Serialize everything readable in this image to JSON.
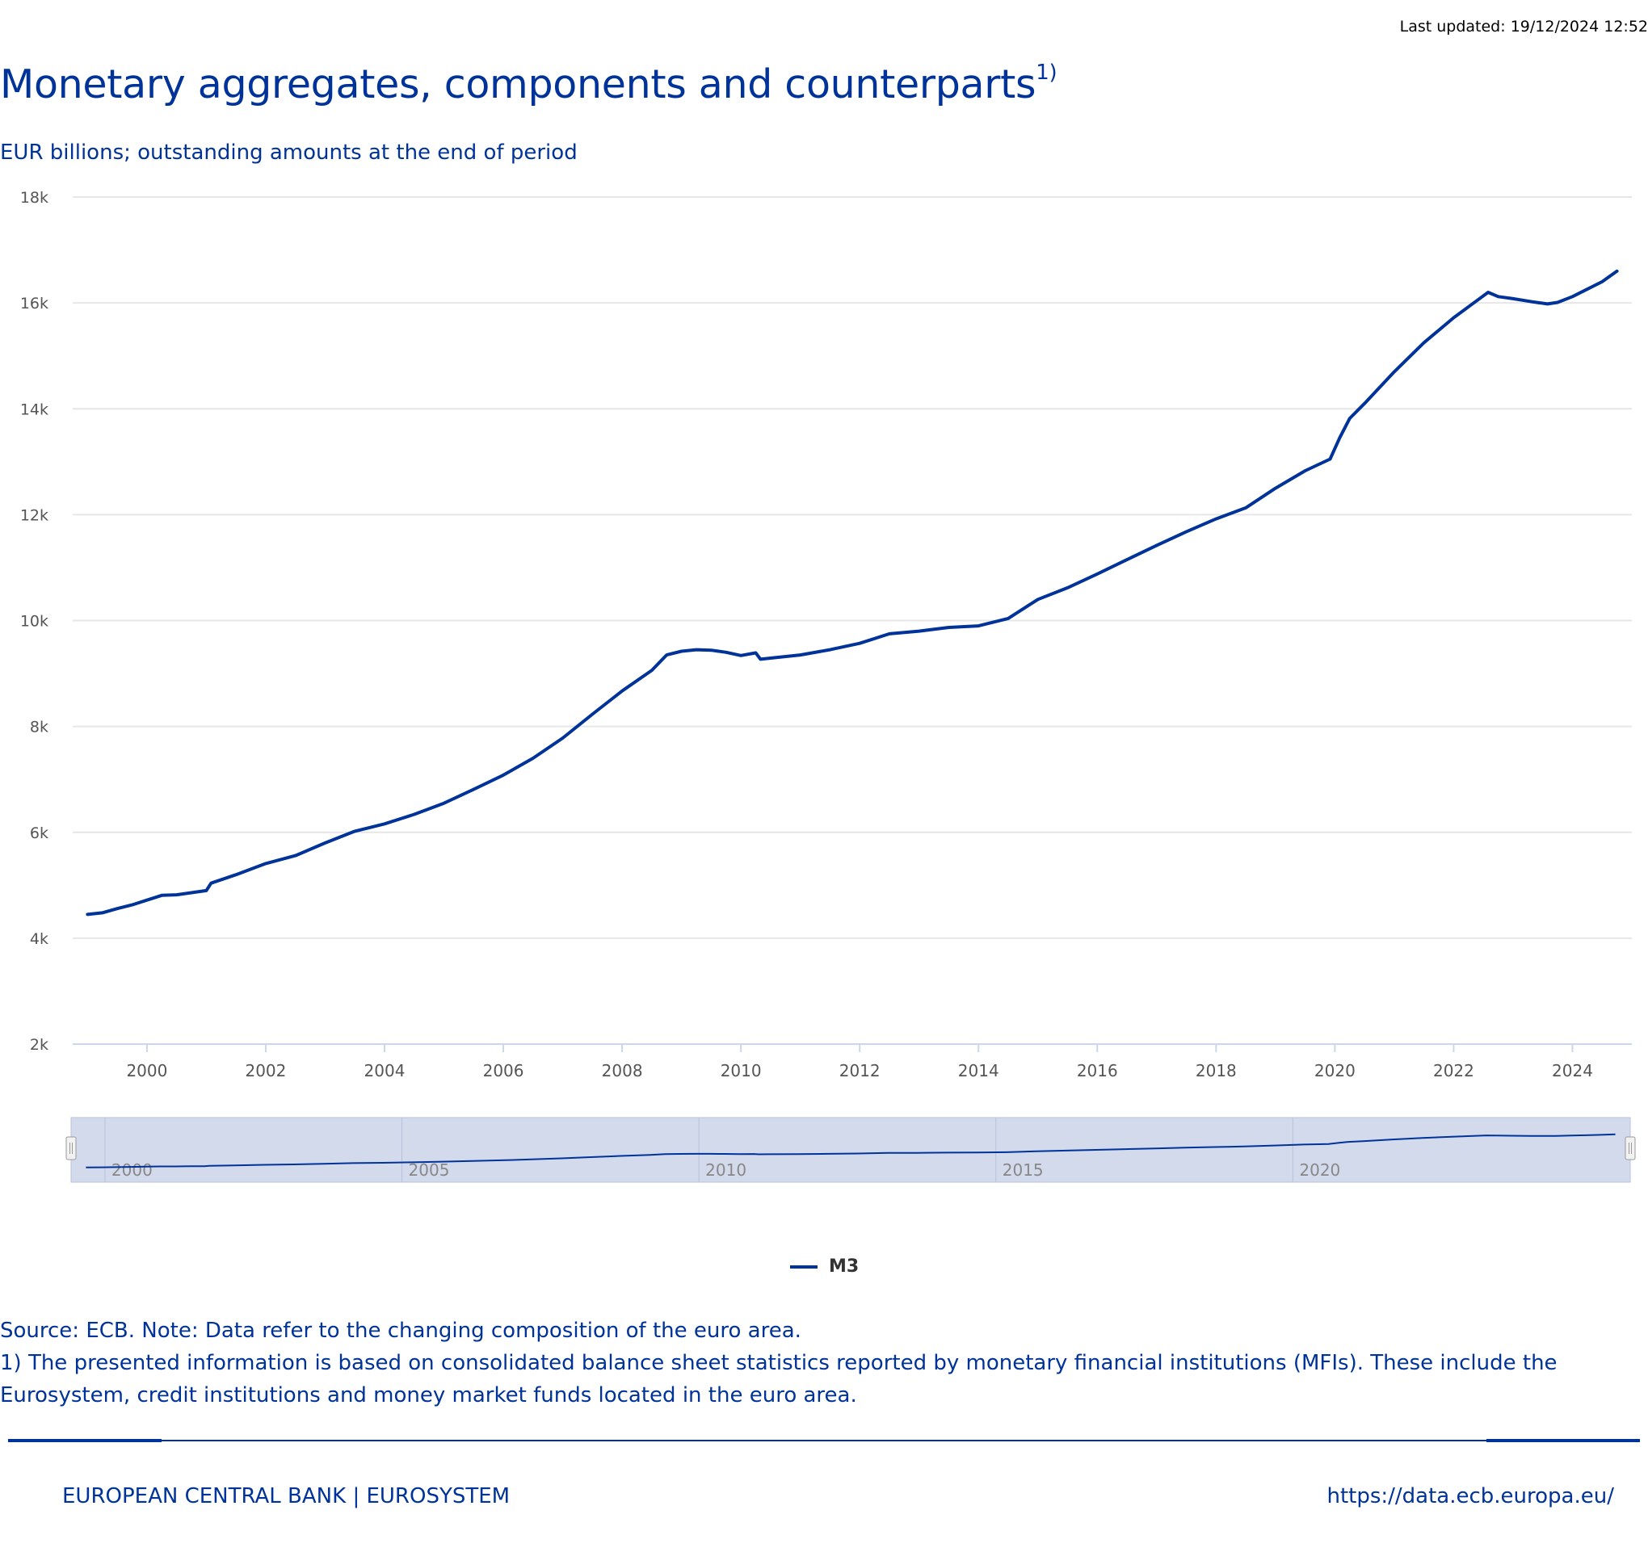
{
  "header": {
    "last_updated": "Last updated: 19/12/2024 12:52",
    "title": "Monetary aggregates, components and counterparts",
    "title_footnote": "1)",
    "subtitle": "EUR billions; outstanding amounts at the end of period"
  },
  "colors": {
    "accent": "#003399",
    "grid": "#e6e6e6",
    "navigator_fill": "#d3daec"
  },
  "chart_data": {
    "type": "line",
    "title": "Monetary aggregates, components and counterparts",
    "subtitle": "EUR billions; outstanding amounts at the end of period",
    "xlabel": "",
    "ylabel": "",
    "xlim": [
      1998.75,
      2025.0
    ],
    "ylim": [
      2000,
      18000
    ],
    "y_ticks": [
      2000,
      4000,
      6000,
      8000,
      10000,
      12000,
      14000,
      16000,
      18000
    ],
    "y_tick_labels": [
      "2k",
      "4k",
      "6k",
      "8k",
      "10k",
      "12k",
      "14k",
      "16k",
      "18k"
    ],
    "x_ticks": [
      2000,
      2002,
      2004,
      2006,
      2008,
      2010,
      2012,
      2014,
      2016,
      2018,
      2020,
      2022,
      2024
    ],
    "x_tick_labels": [
      "2000",
      "2002",
      "2004",
      "2006",
      "2008",
      "2010",
      "2012",
      "2014",
      "2016",
      "2018",
      "2020",
      "2022",
      "2024"
    ],
    "navigator_ticks": [
      2000,
      2005,
      2010,
      2015,
      2020
    ],
    "navigator_tick_labels": [
      "2000",
      "2005",
      "2010",
      "2015",
      "2020"
    ],
    "grid": true,
    "legend_position": "bottom-center",
    "series": [
      {
        "name": "M3",
        "color": "#003399",
        "x": [
          1999.0,
          1999.25,
          1999.5,
          1999.75,
          2000.0,
          2000.25,
          2000.5,
          2000.75,
          2001.0,
          2001.08,
          2001.5,
          2002.0,
          2002.5,
          2003.0,
          2003.5,
          2004.0,
          2004.5,
          2005.0,
          2005.5,
          2006.0,
          2006.5,
          2007.0,
          2007.5,
          2008.0,
          2008.5,
          2008.75,
          2009.0,
          2009.25,
          2009.5,
          2009.75,
          2010.0,
          2010.25,
          2010.33,
          2010.5,
          2011.0,
          2011.5,
          2012.0,
          2012.5,
          2013.0,
          2013.5,
          2014.0,
          2014.5,
          2015.0,
          2015.5,
          2016.0,
          2016.5,
          2017.0,
          2017.5,
          2018.0,
          2018.5,
          2019.0,
          2019.5,
          2019.92,
          2020.08,
          2020.25,
          2020.5,
          2021.0,
          2021.5,
          2022.0,
          2022.4,
          2022.58,
          2022.75,
          2023.0,
          2023.33,
          2023.58,
          2023.75,
          2024.0,
          2024.25,
          2024.5,
          2024.75
        ],
        "y": [
          4450,
          4480,
          4560,
          4630,
          4720,
          4810,
          4820,
          4860,
          4900,
          5040,
          5200,
          5410,
          5560,
          5800,
          6020,
          6160,
          6340,
          6550,
          6810,
          7080,
          7400,
          7780,
          8230,
          8670,
          9060,
          9350,
          9420,
          9450,
          9440,
          9400,
          9340,
          9390,
          9270,
          9290,
          9350,
          9450,
          9570,
          9750,
          9800,
          9870,
          9900,
          10040,
          10400,
          10620,
          10880,
          11150,
          11420,
          11680,
          11920,
          12130,
          12500,
          12830,
          13050,
          13450,
          13820,
          14100,
          14700,
          15250,
          15720,
          16050,
          16200,
          16120,
          16080,
          16020,
          15980,
          16010,
          16120,
          16260,
          16400,
          16600
        ]
      }
    ]
  },
  "legend": {
    "m3_label": "M3"
  },
  "notes": {
    "source": "Source: ECB. Note: Data refer to the changing composition of the euro area.",
    "footnote_1": "1) The presented information is based on consolidated balance sheet statistics reported by monetary financial institutions (MFIs). These include the Eurosystem, credit institutions and money market funds located in the euro area."
  },
  "footer": {
    "brand": "EUROPEAN CENTRAL BANK | EUROSYSTEM",
    "url": "https://data.ecb.europa.eu/"
  }
}
